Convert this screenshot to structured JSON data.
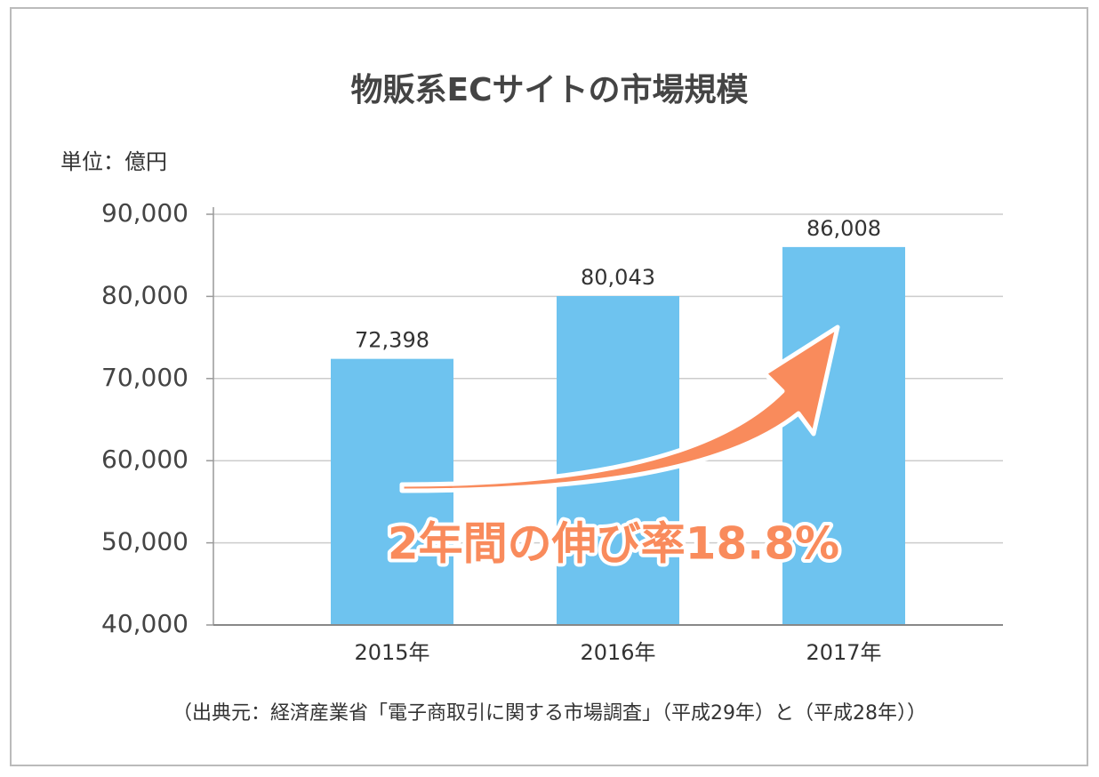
{
  "chart_data": {
    "type": "bar",
    "title": "物販系ECサイトの市場規模",
    "unit_label": "単位：億円",
    "categories": [
      "2015年",
      "2016年",
      "2017年"
    ],
    "values": [
      72398,
      80043,
      86008
    ],
    "value_labels": [
      "72,398",
      "80,043",
      "86,008"
    ],
    "color": "#6ec3ef",
    "ylim": [
      40000,
      90000
    ],
    "yticks": [
      {
        "value": 40000,
        "label": "40,000"
      },
      {
        "value": 50000,
        "label": "50,000"
      },
      {
        "value": 60000,
        "label": "60,000"
      },
      {
        "value": 70000,
        "label": "70,000"
      },
      {
        "value": 80000,
        "label": "80,000"
      },
      {
        "value": 90000,
        "label": "90,000"
      }
    ],
    "grid": true,
    "annotation": "2年間の伸び率18.8%",
    "source": "（出典元：経済産業省「電子商取引に関する市場調査」（平成29年）と（平成28年））"
  }
}
